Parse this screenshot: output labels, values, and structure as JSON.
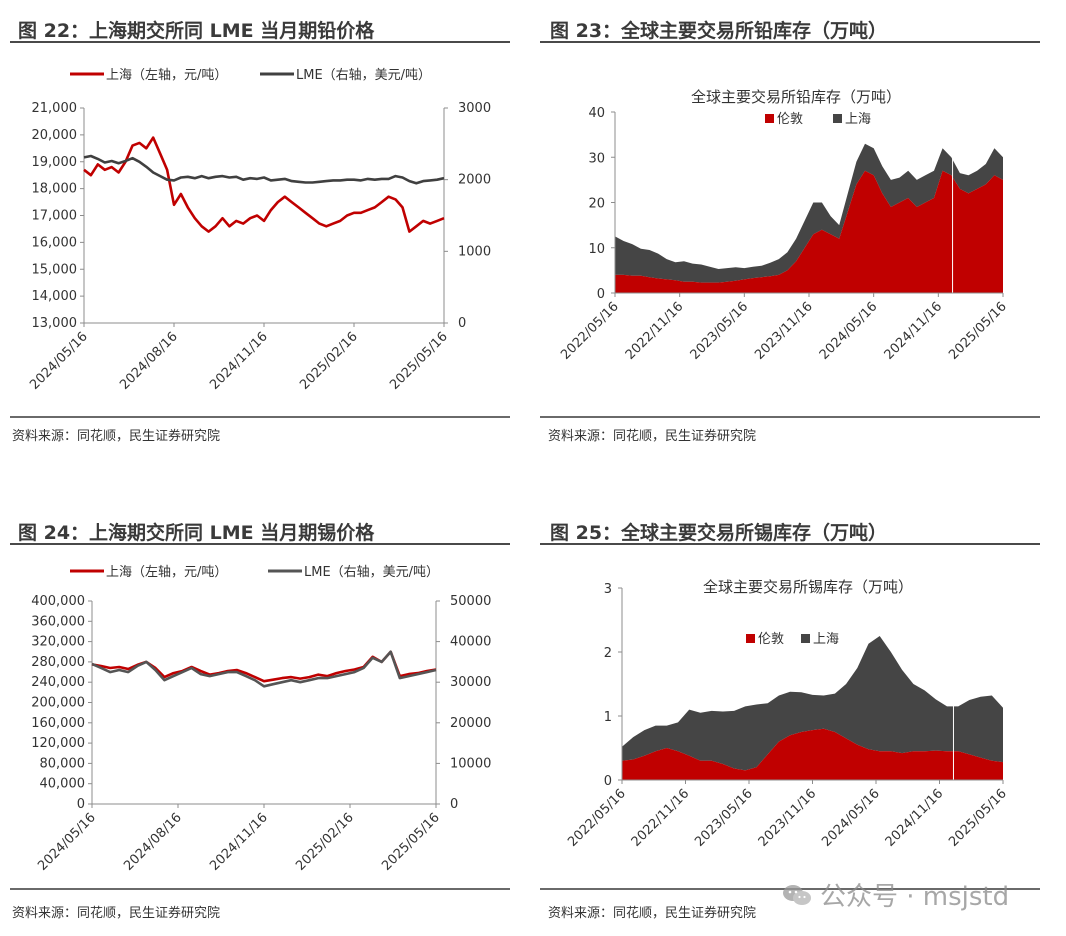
{
  "panels": [
    {
      "id": "p22",
      "title": "图 22：上海期交所同 LME 当月期铅价格",
      "source": "资料来源：同花顺，民生证券研究院"
    },
    {
      "id": "p23",
      "title": "图 23：全球主要交易所铅库存（万吨）",
      "source": "资料来源：同花顺，民生证券研究院"
    },
    {
      "id": "p24",
      "title": "图 24：上海期交所同 LME 当月期锡价格",
      "source": "资料来源：同花顺，民生证券研究院"
    },
    {
      "id": "p25",
      "title": "图 25：全球主要交易所锡库存（万吨）",
      "source": "资料来源：同花顺，民生证券研究院"
    }
  ],
  "watermark": "公众号 · msjstd",
  "colors": {
    "red": "#c00000",
    "gray": "#404040",
    "axis": "#8c8c8c"
  },
  "chart_data": [
    {
      "type": "line",
      "panel": "p22",
      "title": "",
      "x_ticks": [
        "2024/05/16",
        "2024/08/16",
        "2024/11/16",
        "2025/02/16",
        "2025/05/16"
      ],
      "y_left": {
        "min": 13000,
        "max": 21000,
        "ticks": [
          "13,000",
          "14,000",
          "15,000",
          "16,000",
          "17,000",
          "18,000",
          "19,000",
          "20,000",
          "21,000"
        ]
      },
      "y_right": {
        "min": 0,
        "max": 3000,
        "ticks": [
          "0",
          "1000",
          "2000",
          "3000"
        ]
      },
      "series": [
        {
          "name": "上海（左轴，元/吨）",
          "color": "#c00000",
          "axis": "left",
          "values": [
            18700,
            18500,
            18900,
            18700,
            18800,
            18600,
            19000,
            19600,
            19700,
            19500,
            19900,
            19300,
            18700,
            17400,
            17800,
            17300,
            16900,
            16600,
            16400,
            16600,
            16900,
            16600,
            16800,
            16700,
            16900,
            17000,
            16800,
            17200,
            17500,
            17700,
            17500,
            17300,
            17100,
            16900,
            16700,
            16600,
            16700,
            16800,
            17000,
            17100,
            17100,
            17200,
            17300,
            17500,
            17700,
            17600,
            17300,
            16400,
            16600,
            16800,
            16700,
            16800,
            16900
          ]
        },
        {
          "name": "LME（右轴，美元/吨）",
          "color": "#404040",
          "axis": "right",
          "values": [
            2310,
            2330,
            2290,
            2240,
            2260,
            2230,
            2260,
            2300,
            2250,
            2180,
            2100,
            2050,
            2000,
            1990,
            2030,
            2040,
            2020,
            2050,
            2020,
            2040,
            2050,
            2030,
            2040,
            2000,
            2020,
            2010,
            2030,
            1990,
            2000,
            2010,
            1980,
            1970,
            1960,
            1960,
            1970,
            1980,
            1990,
            1990,
            2000,
            2000,
            1990,
            2010,
            2000,
            2010,
            2010,
            2050,
            2030,
            1980,
            1950,
            1980,
            1990,
            2000,
            2020
          ]
        }
      ]
    },
    {
      "type": "area",
      "panel": "p23",
      "title": "全球主要交易所铅库存（万吨）",
      "x_ticks": [
        "2022/05/16",
        "2022/11/16",
        "2023/05/16",
        "2023/11/16",
        "2024/05/16",
        "2024/11/16",
        "2025/05/16"
      ],
      "y": {
        "min": 0,
        "max": 40,
        "ticks": [
          "0",
          "10",
          "20",
          "30",
          "40"
        ]
      },
      "series": [
        {
          "name": "伦敦",
          "color": "#c00000",
          "values": [
            4.0,
            4.0,
            3.8,
            3.8,
            3.5,
            3.2,
            3.0,
            2.8,
            2.5,
            2.5,
            2.3,
            2.3,
            2.3,
            2.5,
            2.7,
            3.0,
            3.3,
            3.5,
            3.7,
            4.0,
            5.0,
            7.0,
            10.0,
            13.0,
            14.0,
            13.0,
            12.0,
            18.0,
            24.0,
            27.0,
            26.0,
            22.0,
            19.0,
            20.0,
            21.0,
            19.0,
            20.0,
            21.0,
            27.0,
            26.0,
            23.0,
            22.0,
            23.0,
            24.0,
            26.0,
            25.0
          ]
        },
        {
          "name": "上海",
          "color": "#454545",
          "values": [
            8.5,
            7.5,
            7.0,
            6.0,
            6.0,
            5.5,
            4.5,
            4.0,
            4.5,
            4.0,
            4.0,
            3.5,
            3.0,
            3.0,
            3.0,
            2.5,
            2.5,
            2.5,
            3.0,
            3.5,
            4.0,
            5.0,
            6.0,
            7.0,
            6.0,
            4.0,
            3.0,
            4.0,
            5.0,
            6.0,
            6.0,
            6.0,
            6.0,
            5.5,
            6.0,
            6.0,
            6.0,
            6.0,
            5.0,
            4.0,
            3.5,
            4.0,
            4.0,
            4.5,
            6.0,
            5.0
          ]
        }
      ]
    },
    {
      "type": "line",
      "panel": "p24",
      "title": "",
      "x_ticks": [
        "2024/05/16",
        "2024/08/16",
        "2024/11/16",
        "2025/02/16",
        "2025/05/16"
      ],
      "y_left": {
        "min": 0,
        "max": 400000,
        "ticks": [
          "0",
          "40,000",
          "80,000",
          "120,000",
          "160,000",
          "200,000",
          "240,000",
          "280,000",
          "320,000",
          "360,000",
          "400,000"
        ]
      },
      "y_right": {
        "min": 0,
        "max": 50000,
        "ticks": [
          "0",
          "10000",
          "20000",
          "30000",
          "40000",
          "50000"
        ]
      },
      "series": [
        {
          "name": "上海（左轴，元/吨）",
          "color": "#c00000",
          "axis": "left",
          "values": [
            275000,
            272000,
            268000,
            270000,
            266000,
            274000,
            280000,
            268000,
            250000,
            258000,
            262000,
            270000,
            262000,
            255000,
            258000,
            262000,
            264000,
            258000,
            250000,
            242000,
            245000,
            248000,
            250000,
            247000,
            250000,
            255000,
            252000,
            258000,
            262000,
            265000,
            270000,
            290000,
            280000,
            300000,
            252000,
            256000,
            258000,
            262000,
            265000
          ]
        },
        {
          "name": "LME（右轴，美元/吨）",
          "color": "#555555",
          "axis": "right",
          "values": [
            34500,
            33500,
            32500,
            33000,
            32500,
            34000,
            35000,
            33000,
            30500,
            31500,
            32500,
            33500,
            32000,
            31500,
            32000,
            32500,
            32500,
            31500,
            30500,
            29000,
            29500,
            30000,
            30500,
            30000,
            30500,
            31000,
            31000,
            31500,
            32000,
            32500,
            33500,
            36000,
            35000,
            37500,
            31000,
            31500,
            32000,
            32500,
            33000
          ]
        }
      ]
    },
    {
      "type": "area",
      "panel": "p25",
      "title": "全球主要交易所锡库存（万吨）",
      "x_ticks": [
        "2022/05/16",
        "2022/11/16",
        "2023/05/16",
        "2023/11/16",
        "2024/05/16",
        "2024/11/16",
        "2025/05/16"
      ],
      "y": {
        "min": 0,
        "max": 3,
        "ticks": [
          "0",
          "1",
          "2",
          "3"
        ]
      },
      "series": [
        {
          "name": "伦敦",
          "color": "#c00000",
          "values": [
            0.3,
            0.32,
            0.38,
            0.45,
            0.5,
            0.45,
            0.38,
            0.3,
            0.3,
            0.25,
            0.18,
            0.15,
            0.2,
            0.4,
            0.6,
            0.7,
            0.75,
            0.78,
            0.8,
            0.75,
            0.65,
            0.55,
            0.48,
            0.45,
            0.45,
            0.42,
            0.45,
            0.45,
            0.46,
            0.45,
            0.45,
            0.4,
            0.35,
            0.3,
            0.28
          ]
        },
        {
          "name": "上海",
          "color": "#454545",
          "values": [
            0.22,
            0.35,
            0.4,
            0.4,
            0.35,
            0.45,
            0.72,
            0.75,
            0.78,
            0.82,
            0.9,
            1.0,
            0.98,
            0.8,
            0.72,
            0.68,
            0.62,
            0.55,
            0.52,
            0.6,
            0.85,
            1.2,
            1.65,
            1.8,
            1.55,
            1.3,
            1.05,
            0.95,
            0.8,
            0.7,
            0.7,
            0.85,
            0.95,
            1.02,
            0.85
          ]
        }
      ]
    }
  ],
  "legends": {
    "p22": [
      "上海（左轴，元/吨）",
      "LME（右轴，美元/吨）"
    ],
    "p23": [
      "伦敦",
      "上海"
    ],
    "p24": [
      "上海（左轴，元/吨）",
      "LME（右轴，美元/吨）"
    ],
    "p25": [
      "伦敦",
      "上海"
    ]
  }
}
